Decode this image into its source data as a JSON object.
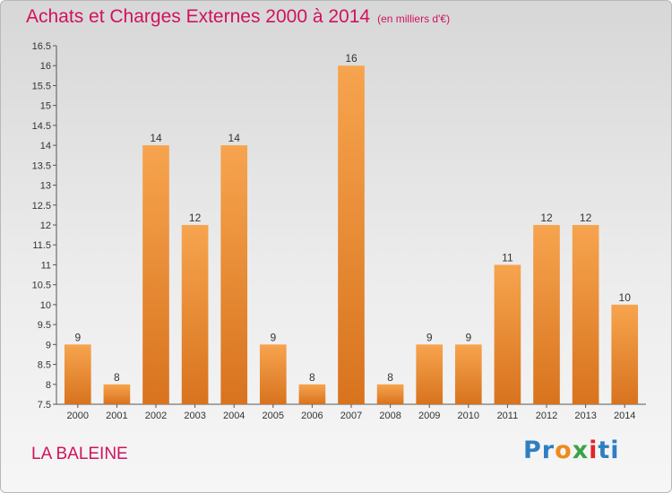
{
  "title": "Achats et Charges Externes 2000 à 2014",
  "unit": "(en milliers d'€)",
  "place": "LA BALEINE",
  "logo": {
    "text": "Proxiti",
    "letters": [
      "P",
      "r",
      "o",
      "x",
      "i",
      "t",
      "i"
    ],
    "colors": [
      "#2d7fc1",
      "#2d7fc1",
      "#f08a1c",
      "#3aa34a",
      "#e0262a",
      "#2d7fc1",
      "#2d7fc1"
    ]
  },
  "colors": {
    "bar_top": "#f7a44e",
    "bar_bottom": "#d8731e",
    "title": "#d0125f"
  },
  "chart_data": {
    "type": "bar",
    "title": "Achats et Charges Externes 2000 à 2014",
    "categories": [
      "2000",
      "2001",
      "2002",
      "2003",
      "2004",
      "2005",
      "2006",
      "2007",
      "2008",
      "2009",
      "2010",
      "2011",
      "2012",
      "2013",
      "2014"
    ],
    "values": [
      9,
      8,
      14,
      12,
      14,
      9,
      8,
      16,
      8,
      9,
      9,
      11,
      12,
      12,
      10
    ],
    "value_labels": [
      "9",
      "8",
      "14",
      "12",
      "14",
      "9",
      "8",
      "16",
      "8",
      "9",
      "9",
      "11",
      "12",
      "12",
      "10"
    ],
    "xlabel": "",
    "ylabel": "",
    "ylim": [
      7.5,
      16.5
    ],
    "yticks": [
      7.5,
      8,
      8.5,
      9,
      9.5,
      10,
      10.5,
      11,
      11.5,
      12,
      12.5,
      13,
      13.5,
      14,
      14.5,
      15,
      15.5,
      16,
      16.5
    ],
    "ytick_labels": [
      "7.5",
      "8",
      "8.5",
      "9",
      "9.5",
      "10",
      "10.5",
      "11",
      "11.5",
      "12",
      "12.5",
      "13",
      "13.5",
      "14",
      "14.5",
      "15",
      "15.5",
      "16",
      "16.5"
    ],
    "grid": false,
    "legend": "none"
  }
}
